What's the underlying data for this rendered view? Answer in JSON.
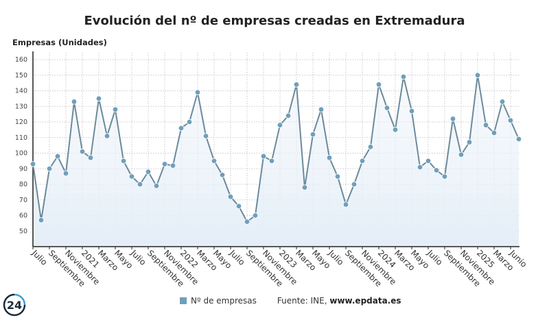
{
  "chart_data": {
    "type": "line",
    "title": "Evolución del nº de empresas creadas en Extremadura",
    "ylabel": "Empresas (Unidades)",
    "xlabel": "",
    "ylim": [
      40,
      160
    ],
    "yticks": [
      50,
      60,
      70,
      80,
      90,
      100,
      110,
      120,
      130,
      140,
      150,
      160
    ],
    "grid": true,
    "legend_placement": "bottom",
    "series": [
      {
        "name": "Nº de empresas",
        "color": "#6f9fbb",
        "values": [
          93,
          57,
          90,
          98,
          87,
          133,
          101,
          97,
          135,
          111,
          128,
          95,
          85,
          80,
          88,
          79,
          93,
          92,
          116,
          120,
          139,
          111,
          95,
          86,
          72,
          66,
          56,
          60,
          98,
          95,
          118,
          124,
          144,
          78,
          112,
          128,
          97,
          85,
          67,
          80,
          95,
          104,
          144,
          129,
          115,
          149,
          127,
          91,
          95,
          89,
          85,
          122,
          99,
          107,
          150,
          118,
          113,
          133,
          121,
          109
        ]
      }
    ],
    "x_range": [
      "Julio 2020",
      "Junio 2025"
    ],
    "xtick_labels": [
      "Julio",
      "Septiembre",
      "Noviembre",
      "2021",
      "Marzo",
      "Mayo",
      "Julio",
      "Septiembre",
      "Noviembre",
      "2022",
      "Marzo",
      "Mayo",
      "Julio",
      "Septiembre",
      "Noviembre",
      "2023",
      "Marzo",
      "Mayo",
      "Julio",
      "Septiembre",
      "Noviembre",
      "2024",
      "Marzo",
      "Mayo",
      "Julio",
      "Septiembre",
      "Noviembre",
      "2025",
      "Marzo",
      "Junio"
    ]
  },
  "legend": {
    "label": "Nº de empresas"
  },
  "source": {
    "prefix": "Fuente: INE, ",
    "url": "www.epdata.es"
  },
  "logo": {
    "text": "24",
    "color": "#1a2a3a"
  }
}
